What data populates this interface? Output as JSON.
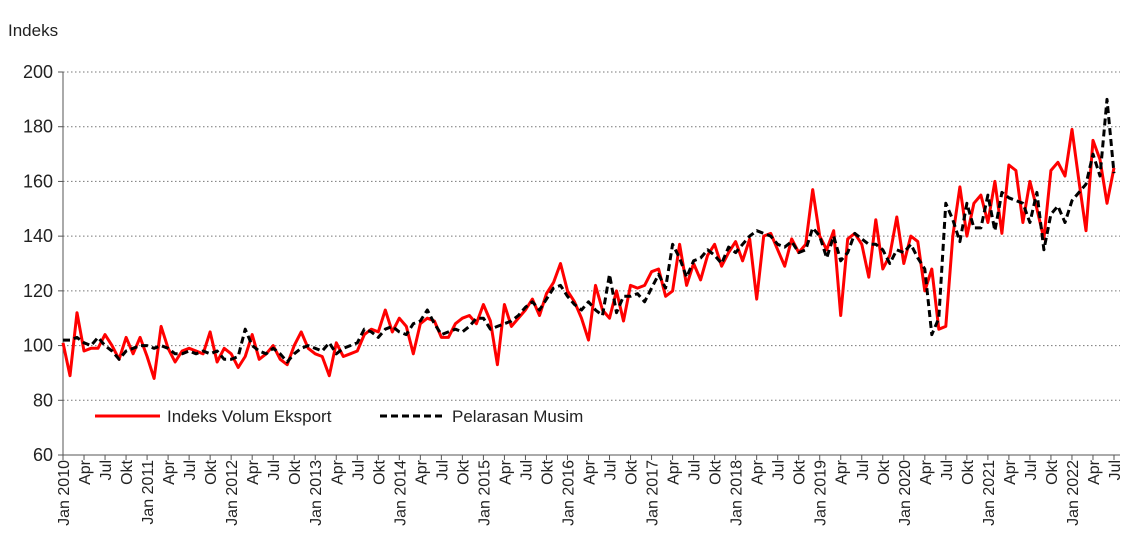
{
  "chart_data": {
    "type": "line",
    "y_label": "Indeks",
    "categories": [
      "Jan 2010",
      null,
      null,
      "Apr",
      null,
      null,
      "Jul",
      null,
      null,
      "Okt",
      null,
      null,
      "Jan 2011",
      null,
      null,
      "Apr",
      null,
      null,
      "Jul",
      null,
      null,
      "Okt",
      null,
      null,
      "Jan 2012",
      null,
      null,
      "Apr",
      null,
      null,
      "Jul",
      null,
      null,
      "Okt",
      null,
      null,
      "Jan 2013",
      null,
      null,
      "Apr",
      null,
      null,
      "Jul",
      null,
      null,
      "Okt",
      null,
      null,
      "Jan 2014",
      null,
      null,
      "Apr",
      null,
      null,
      "Jul",
      null,
      null,
      "Okt",
      null,
      null,
      "Jan 2015",
      null,
      null,
      "Apr",
      null,
      null,
      "Jul",
      null,
      null,
      "Okt",
      null,
      null,
      "Jan 2016",
      null,
      null,
      "Apr",
      null,
      null,
      "Jul",
      null,
      null,
      "Okt",
      null,
      null,
      "Jan 2017",
      null,
      null,
      "Apr",
      null,
      null,
      "Jul",
      null,
      null,
      "Okt",
      null,
      null,
      "Jan 2018",
      null,
      null,
      "Apr",
      null,
      null,
      "Jul",
      null,
      null,
      "Okt",
      null,
      null,
      "Jan 2019",
      null,
      null,
      "Apr",
      null,
      null,
      "Jul",
      null,
      null,
      "Okt",
      null,
      null,
      "Jan 2020",
      null,
      null,
      "Apr",
      null,
      null,
      "Jul",
      null,
      null,
      "Okt",
      null,
      null,
      "Jan 2021",
      null,
      null,
      "Apr",
      null,
      null,
      "Jul",
      null,
      null,
      "Okt",
      null,
      null,
      "Jan 2022",
      null,
      null,
      "Apr",
      null,
      null,
      "Jul"
    ],
    "series": [
      {
        "name": "Indeks Volum Eksport",
        "color": "#ff0000",
        "dash": false,
        "values": [
          101,
          89,
          112,
          98,
          99,
          99,
          104,
          100,
          95,
          103,
          97,
          103,
          96,
          88,
          107,
          99,
          94,
          98,
          99,
          98,
          97,
          105,
          94,
          99,
          97,
          92,
          96,
          104,
          95,
          97,
          100,
          95,
          93,
          100,
          105,
          99,
          97,
          96,
          89,
          101,
          96,
          97,
          98,
          104,
          106,
          105,
          113,
          105,
          110,
          107,
          97,
          108,
          110,
          109,
          103,
          103,
          108,
          110,
          111,
          108,
          115,
          109,
          93,
          115,
          107,
          110,
          113,
          117,
          111,
          119,
          123,
          130,
          120,
          116,
          110,
          102,
          122,
          113,
          110,
          120,
          109,
          122,
          121,
          122,
          127,
          128,
          118,
          120,
          137,
          122,
          130,
          124,
          133,
          137,
          129,
          134,
          138,
          131,
          139,
          117,
          140,
          141,
          135,
          129,
          139,
          134,
          137,
          157,
          140,
          135,
          142,
          111,
          139,
          141,
          137,
          125,
          146,
          128,
          133,
          147,
          130,
          140,
          138,
          120,
          128,
          106,
          107,
          140,
          158,
          140,
          152,
          155,
          145,
          160,
          141,
          166,
          164,
          145,
          160,
          150,
          139,
          164,
          167,
          162,
          179,
          160,
          142,
          175,
          168,
          152,
          165
        ]
      },
      {
        "name": "Pelarasan Musim",
        "color": "#000000",
        "dash": true,
        "values": [
          102,
          102,
          103,
          101,
          100,
          103,
          100,
          98,
          95,
          98,
          99,
          100,
          100,
          99,
          100,
          99,
          97,
          97,
          98,
          97,
          98,
          97,
          98,
          95,
          95,
          96,
          106,
          100,
          98,
          97,
          99,
          97,
          94,
          97,
          99,
          100,
          99,
          98,
          101,
          97,
          99,
          100,
          101,
          106,
          105,
          103,
          106,
          107,
          105,
          104,
          108,
          109,
          113,
          108,
          104,
          105,
          106,
          105,
          107,
          110,
          110,
          106,
          107,
          108,
          109,
          111,
          114,
          116,
          113,
          117,
          121,
          122,
          118,
          115,
          113,
          116,
          113,
          111,
          126,
          112,
          118,
          118,
          119,
          116,
          121,
          126,
          121,
          137,
          132,
          125,
          131,
          132,
          135,
          133,
          130,
          136,
          134,
          137,
          140,
          142,
          141,
          140,
          137,
          136,
          138,
          134,
          135,
          143,
          140,
          132,
          140,
          131,
          134,
          141,
          139,
          137,
          137,
          135,
          130,
          135,
          134,
          137,
          132,
          128,
          104,
          110,
          152,
          146,
          138,
          152,
          143,
          143,
          155,
          142,
          156,
          154,
          153,
          152,
          145,
          156,
          135,
          148,
          151,
          145,
          153,
          156,
          159,
          170,
          162,
          190,
          163
        ]
      }
    ],
    "ylim": [
      60,
      200
    ],
    "yticks": [
      60,
      80,
      100,
      120,
      140,
      160,
      180,
      200
    ],
    "grid": true,
    "legend": "lower left"
  }
}
